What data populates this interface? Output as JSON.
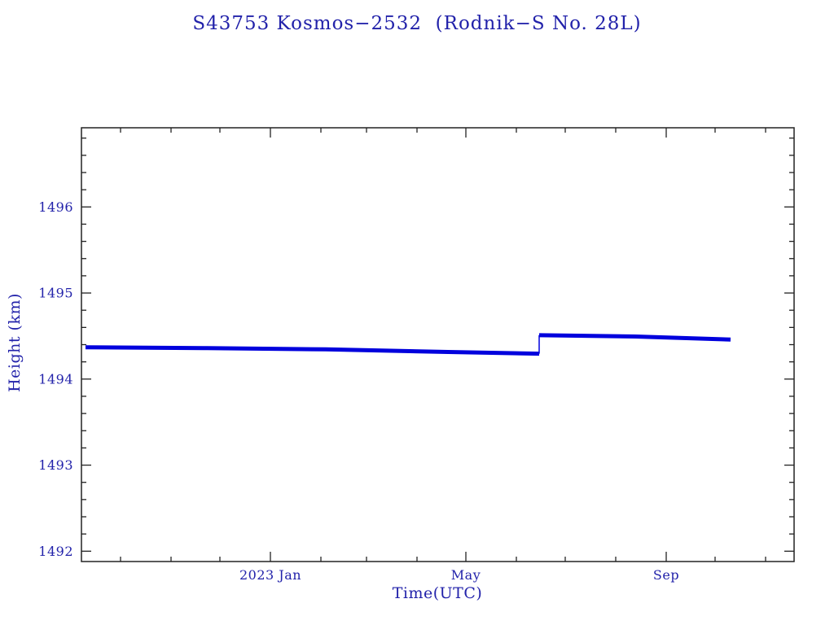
{
  "title": "S43753 Kosmos−2532  (Rodnik−S No. 28L)",
  "axes": {
    "x_label": "Time(UTC)",
    "y_label": "Height (km)"
  },
  "colors": {
    "text": "#2222aa",
    "line": "#0000dd",
    "frame": "#222222",
    "background": "#ffffff"
  },
  "chart_data": {
    "type": "line",
    "title": "S43753 Kosmos−2532  (Rodnik−S No. 28L)",
    "xlabel": "Time(UTC)",
    "ylabel": "Height (km)",
    "x_unit": "days (0 = left edge of plot, ticks labeled by calendar month)",
    "xlim": [
      0,
      437.5
    ],
    "ylim": [
      1491.88,
      1496.92
    ],
    "x_major_ticks": [
      {
        "day": 116,
        "label": "2023 Jan"
      },
      {
        "day": 236,
        "label": "May"
      },
      {
        "day": 359,
        "label": "Sep"
      }
    ],
    "x_minor_tick_days": [
      24,
      55,
      85,
      147,
      175,
      206,
      267,
      297,
      328,
      389,
      420
    ],
    "y_major_ticks": [
      1492,
      1493,
      1494,
      1495,
      1496
    ],
    "y_minor_tick_step": 0.2,
    "grid": false,
    "legend": "none",
    "series": [
      {
        "name": "height-pre-maneuver",
        "stroke_width": 5,
        "points": [
          [
            2.5,
            1494.37
          ],
          [
            75,
            1494.36
          ],
          [
            150,
            1494.345
          ],
          [
            225,
            1494.315
          ],
          [
            281,
            1494.295
          ]
        ]
      },
      {
        "name": "maneuver-jump-connector",
        "stroke_width": 1.5,
        "points": [
          [
            281,
            1494.295
          ],
          [
            281,
            1494.51
          ]
        ]
      },
      {
        "name": "height-post-maneuver",
        "stroke_width": 5,
        "points": [
          [
            281,
            1494.51
          ],
          [
            340,
            1494.495
          ],
          [
            398.5,
            1494.46
          ]
        ]
      }
    ]
  }
}
